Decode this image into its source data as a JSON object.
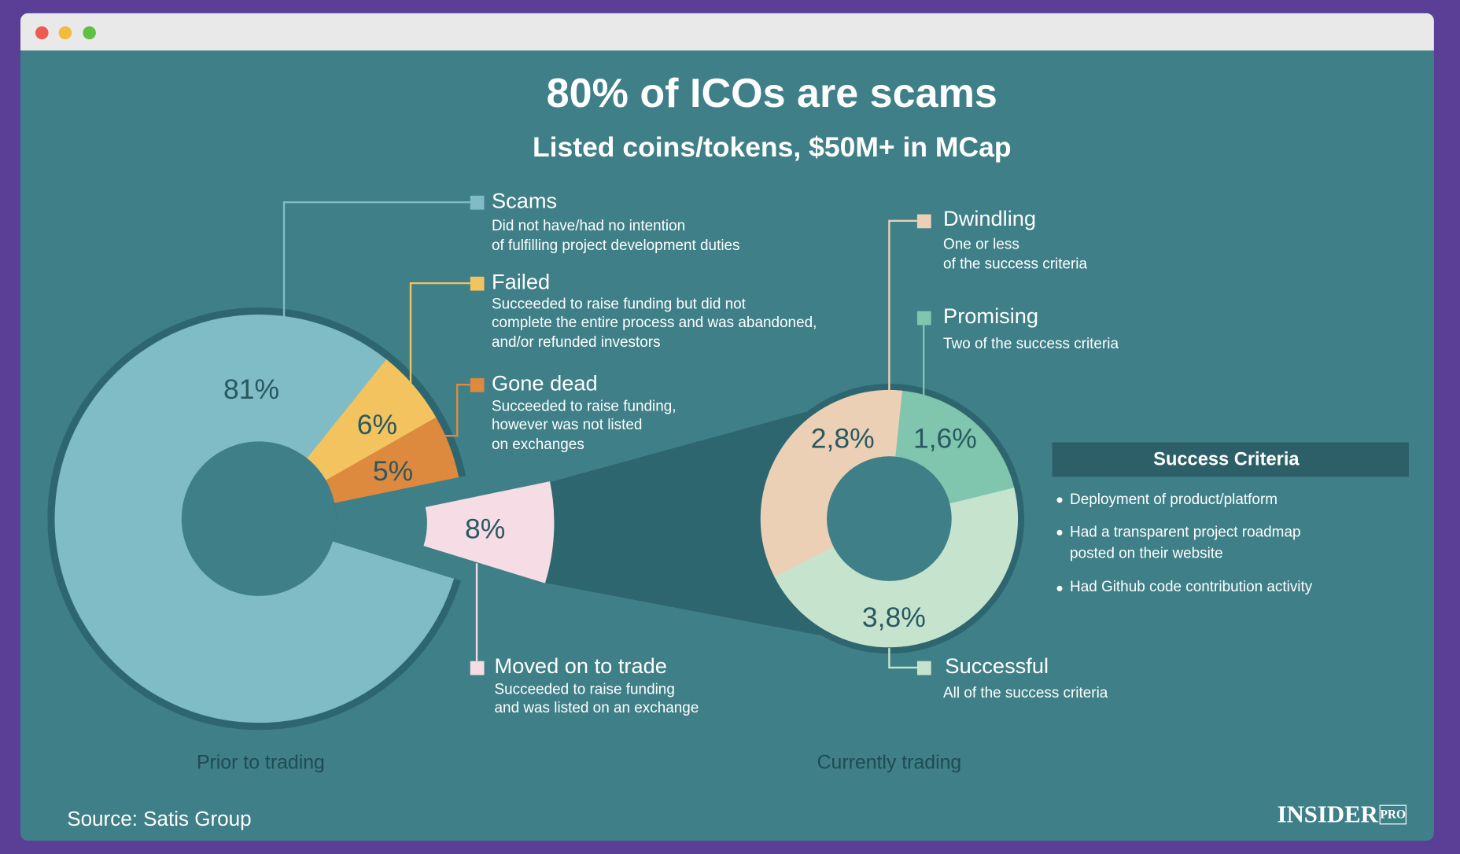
{
  "title": "80% of ICOs are scams",
  "subtitle": "Listed coins/tokens, $50M+ in MCap",
  "chart_data": [
    {
      "type": "pie",
      "caption": "Prior to trading",
      "categories": [
        "Scams",
        "Failed",
        "Gone dead",
        "Moved on to trade"
      ],
      "descriptions": [
        [
          "Did not have/had no intention",
          "of fulfilling project development duties"
        ],
        [
          "Succeeded to raise funding but did not",
          "complete the entire process and was abandoned,",
          "and/or refunded investors"
        ],
        [
          "Succeeded to raise funding,",
          "however was not listed",
          "on exchanges"
        ],
        [
          "Succeeded to raise funding",
          "and was listed on an exchange"
        ]
      ],
      "values": [
        81,
        6,
        5,
        8
      ],
      "value_labels": [
        "81%",
        "6%",
        "5%",
        "8%"
      ],
      "colors": [
        "#7fbcc6",
        "#f2c35e",
        "#de8a3e",
        "#f6dce4"
      ]
    },
    {
      "type": "pie",
      "caption": "Currently trading",
      "categories": [
        "Dwindling",
        "Promising",
        "Successful"
      ],
      "descriptions": [
        [
          "One or less",
          "of the success criteria"
        ],
        [
          "Two of the success criteria"
        ],
        [
          "All of the success criteria"
        ]
      ],
      "values": [
        2.8,
        1.6,
        3.8
      ],
      "value_labels": [
        "2,8%",
        "1,6%",
        "3,8%"
      ],
      "colors": [
        "#ebd0b5",
        "#80c5ad",
        "#c6e4cd"
      ]
    }
  ],
  "success_criteria": {
    "title": "Success Criteria",
    "items": [
      [
        "Deployment of product/platform"
      ],
      [
        "Had a transparent project roadmap",
        "posted on their website"
      ],
      [
        "Had Github code contribution activity"
      ]
    ]
  },
  "source": "Source: Satis Group",
  "brand": "INSIDER",
  "brand_suffix": "PRO"
}
